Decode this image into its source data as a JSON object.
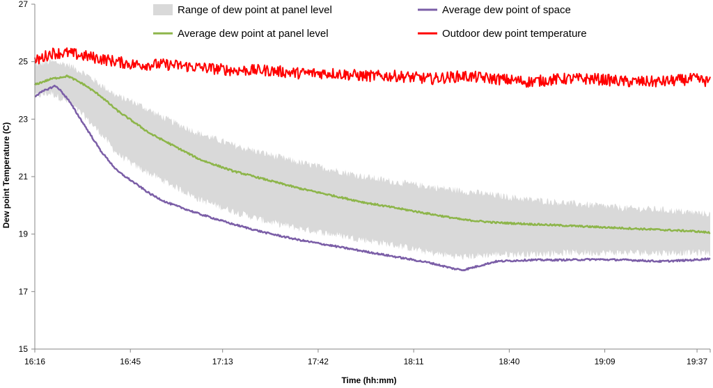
{
  "chart_data": {
    "type": "line",
    "title": "",
    "xlabel": "Time (hh:mm)",
    "ylabel": "Dew point Temperature (C)",
    "ylim": [
      15,
      27
    ],
    "y_ticks": [
      15,
      17,
      19,
      21,
      23,
      25,
      27
    ],
    "x_range_min": [
      0,
      81
    ],
    "x_ticks": [
      {
        "label": "16:16",
        "min": 0
      },
      {
        "label": "16:45",
        "min": 29
      },
      {
        "label": "17:13",
        "min": 57
      },
      {
        "label": "17:42",
        "min": 86
      },
      {
        "label": "18:11",
        "min": 115
      },
      {
        "label": "18:40",
        "min": 144
      },
      {
        "label": "19:09",
        "min": 173
      },
      {
        "label": "19:37",
        "min": 201
      }
    ],
    "x_max_min": 205,
    "legend": [
      {
        "key": "range",
        "label": "Range of dew point at panel level"
      },
      {
        "key": "space",
        "label": "Average dew point of space"
      },
      {
        "key": "panel",
        "label": "Average dew point at panel level"
      },
      {
        "key": "outdoor",
        "label": "Outdoor dew point temperature"
      }
    ],
    "series": [
      {
        "name": "Outdoor dew point temperature",
        "key": "outdoor",
        "color": "#ff0000",
        "noise": 0.2,
        "x": [
          0,
          5,
          10,
          15,
          20,
          30,
          40,
          50,
          60,
          70,
          80,
          90,
          100,
          110,
          120,
          130,
          140,
          150,
          160,
          170,
          180,
          190,
          200,
          205
        ],
        "y": [
          25.0,
          25.3,
          25.3,
          25.2,
          25.1,
          24.9,
          24.9,
          24.8,
          24.7,
          24.7,
          24.6,
          24.6,
          24.5,
          24.5,
          24.4,
          24.5,
          24.4,
          24.3,
          24.4,
          24.4,
          24.3,
          24.3,
          24.4,
          24.3
        ]
      },
      {
        "name": "Average dew point at panel level",
        "key": "panel",
        "color": "#8db54a",
        "noise": 0.03,
        "x": [
          0,
          5,
          10,
          15,
          20,
          25,
          30,
          35,
          40,
          50,
          60,
          70,
          80,
          90,
          100,
          110,
          120,
          130,
          140,
          150,
          160,
          170,
          180,
          190,
          200,
          205
        ],
        "y": [
          24.2,
          24.4,
          24.5,
          24.2,
          23.8,
          23.3,
          22.9,
          22.5,
          22.2,
          21.6,
          21.2,
          20.9,
          20.6,
          20.35,
          20.1,
          19.9,
          19.7,
          19.5,
          19.4,
          19.35,
          19.3,
          19.25,
          19.2,
          19.15,
          19.1,
          19.05
        ]
      },
      {
        "name": "Average dew point of space",
        "key": "space",
        "color": "#7b5ea7",
        "noise": 0.03,
        "x": [
          0,
          3,
          6,
          7,
          10,
          15,
          20,
          25,
          30,
          35,
          40,
          50,
          60,
          70,
          80,
          90,
          100,
          110,
          120,
          127,
          130,
          135,
          140,
          150,
          160,
          170,
          180,
          190,
          200,
          205
        ],
        "y": [
          23.8,
          24.0,
          24.15,
          24.1,
          23.7,
          22.8,
          21.9,
          21.2,
          20.8,
          20.4,
          20.1,
          19.7,
          19.35,
          19.05,
          18.8,
          18.6,
          18.4,
          18.2,
          18.0,
          17.8,
          17.75,
          17.9,
          18.05,
          18.1,
          18.1,
          18.12,
          18.1,
          18.05,
          18.1,
          18.15
        ]
      }
    ],
    "range_band": {
      "name": "Range of dew point at panel level",
      "key": "range",
      "color": "#d9d9d9",
      "x": [
        0,
        5,
        10,
        15,
        20,
        25,
        30,
        40,
        50,
        60,
        70,
        80,
        90,
        100,
        110,
        120,
        130,
        140,
        150,
        160,
        170,
        180,
        190,
        200,
        205
      ],
      "upper": [
        24.9,
        25.0,
        24.9,
        24.6,
        24.2,
        23.8,
        23.6,
        23.0,
        22.5,
        22.1,
        21.8,
        21.5,
        21.25,
        21.0,
        20.8,
        20.65,
        20.5,
        20.35,
        20.2,
        20.1,
        20.0,
        19.9,
        19.85,
        19.75,
        19.7
      ],
      "lower": [
        23.8,
        23.9,
        23.6,
        23.1,
        22.5,
        21.8,
        21.4,
        20.8,
        20.2,
        19.8,
        19.45,
        19.2,
        19.0,
        18.8,
        18.6,
        18.35,
        18.2,
        18.3,
        18.3,
        18.35,
        18.35,
        18.35,
        18.35,
        18.35,
        18.35
      ]
    }
  }
}
